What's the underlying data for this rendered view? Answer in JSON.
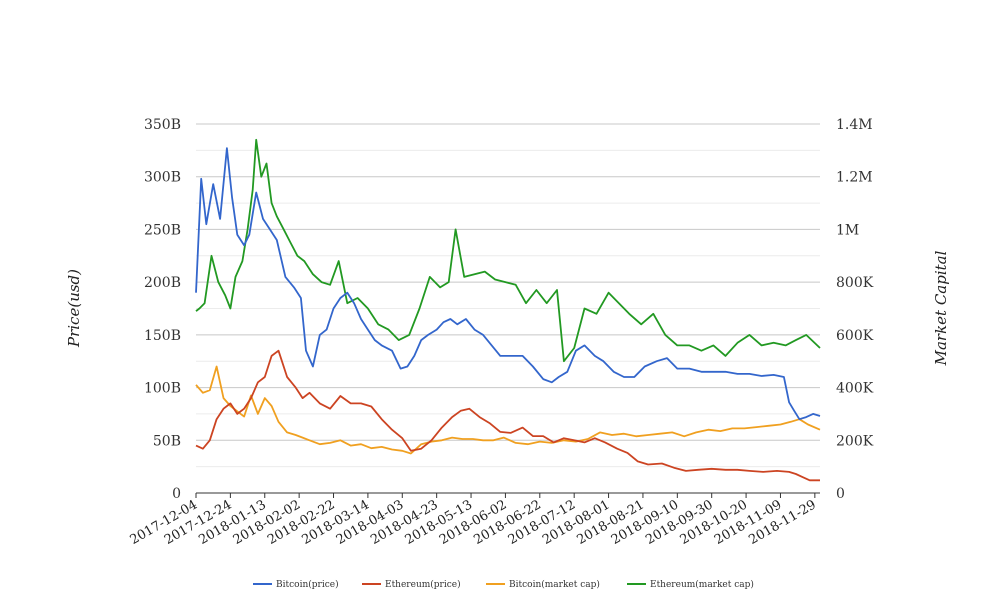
{
  "chart_data": {
    "type": "line",
    "title": "",
    "xlabel": "",
    "ylabel_left": "Price(usd)",
    "ylabel_right": "Market Capital",
    "x_ticks": [
      "2017-12-04",
      "2017-12-24",
      "2018-01-13",
      "2018-02-02",
      "2018-02-22",
      "2018-03-14",
      "2018-04-03",
      "2018-04-23",
      "2018-05-13",
      "2018-06-02",
      "2018-06-22",
      "2018-07-12",
      "2018-08-01",
      "2018-08-21",
      "2018-09-10",
      "2018-09-30",
      "2018-10-20",
      "2018-11-09",
      "2018-11-29"
    ],
    "x_range": [
      "2017-12-04",
      "2018-12-02"
    ],
    "y_left": {
      "range": [
        0,
        350
      ],
      "ticks": [
        0,
        50,
        100,
        150,
        200,
        250,
        300,
        350
      ],
      "tick_labels": [
        "0",
        "50B",
        "100B",
        "150B",
        "200B",
        "250B",
        "300B",
        "350B"
      ]
    },
    "y_right": {
      "range": [
        0,
        1400
      ],
      "ticks": [
        0,
        200,
        400,
        600,
        800,
        1000,
        1200,
        1400
      ],
      "tick_labels": [
        "0",
        "200K",
        "400K",
        "600K",
        "800K",
        "1M",
        "1.2M",
        "1.4M"
      ]
    },
    "grid": true,
    "legend_position": "bottom",
    "series": [
      {
        "name": "Bitcoin(price)",
        "axis": "left",
        "color": "#3366cc",
        "x": [
          "2017-12-04",
          "2017-12-07",
          "2017-12-10",
          "2017-12-14",
          "2017-12-18",
          "2017-12-22",
          "2017-12-25",
          "2017-12-28",
          "2018-01-01",
          "2018-01-04",
          "2018-01-08",
          "2018-01-12",
          "2018-01-16",
          "2018-01-20",
          "2018-01-25",
          "2018-01-30",
          "2018-02-03",
          "2018-02-06",
          "2018-02-10",
          "2018-02-14",
          "2018-02-18",
          "2018-02-22",
          "2018-02-26",
          "2018-03-02",
          "2018-03-06",
          "2018-03-10",
          "2018-03-14",
          "2018-03-18",
          "2018-03-22",
          "2018-03-28",
          "2018-04-02",
          "2018-04-06",
          "2018-04-10",
          "2018-04-14",
          "2018-04-18",
          "2018-04-23",
          "2018-04-27",
          "2018-05-01",
          "2018-05-05",
          "2018-05-10",
          "2018-05-15",
          "2018-05-20",
          "2018-05-25",
          "2018-05-30",
          "2018-06-05",
          "2018-06-12",
          "2018-06-18",
          "2018-06-24",
          "2018-06-29",
          "2018-07-03",
          "2018-07-08",
          "2018-07-13",
          "2018-07-18",
          "2018-07-24",
          "2018-07-29",
          "2018-08-04",
          "2018-08-10",
          "2018-08-16",
          "2018-08-22",
          "2018-08-29",
          "2018-09-04",
          "2018-09-10",
          "2018-09-17",
          "2018-09-24",
          "2018-10-01",
          "2018-10-08",
          "2018-10-15",
          "2018-10-22",
          "2018-10-29",
          "2018-11-05",
          "2018-11-11",
          "2018-11-14",
          "2018-11-17",
          "2018-11-20",
          "2018-11-24",
          "2018-11-28",
          "2018-12-02"
        ],
        "values": [
          190,
          298,
          255,
          293,
          260,
          327,
          280,
          245,
          235,
          245,
          285,
          260,
          250,
          240,
          205,
          195,
          185,
          135,
          120,
          150,
          155,
          175,
          185,
          190,
          180,
          165,
          155,
          145,
          140,
          135,
          118,
          120,
          130,
          145,
          150,
          155,
          162,
          165,
          160,
          165,
          155,
          150,
          140,
          130,
          130,
          130,
          120,
          108,
          105,
          110,
          115,
          135,
          140,
          130,
          125,
          115,
          110,
          110,
          120,
          125,
          128,
          118,
          118,
          115,
          115,
          115,
          113,
          113,
          111,
          112,
          110,
          86,
          78,
          70,
          72,
          75,
          73
        ]
      },
      {
        "name": "Ethereum(price)",
        "axis": "left",
        "color": "#cc4422",
        "x": [
          "2017-12-04",
          "2017-12-08",
          "2017-12-12",
          "2017-12-16",
          "2017-12-20",
          "2017-12-24",
          "2017-12-28",
          "2018-01-01",
          "2018-01-05",
          "2018-01-09",
          "2018-01-13",
          "2018-01-17",
          "2018-01-21",
          "2018-01-26",
          "2018-01-31",
          "2018-02-04",
          "2018-02-08",
          "2018-02-14",
          "2018-02-20",
          "2018-02-26",
          "2018-03-04",
          "2018-03-10",
          "2018-03-16",
          "2018-03-22",
          "2018-03-28",
          "2018-04-03",
          "2018-04-08",
          "2018-04-14",
          "2018-04-20",
          "2018-04-26",
          "2018-05-02",
          "2018-05-07",
          "2018-05-12",
          "2018-05-18",
          "2018-05-24",
          "2018-05-30",
          "2018-06-05",
          "2018-06-12",
          "2018-06-18",
          "2018-06-24",
          "2018-06-30",
          "2018-07-06",
          "2018-07-12",
          "2018-07-18",
          "2018-07-24",
          "2018-07-30",
          "2018-08-06",
          "2018-08-12",
          "2018-08-18",
          "2018-08-24",
          "2018-09-01",
          "2018-09-08",
          "2018-09-15",
          "2018-09-22",
          "2018-09-30",
          "2018-10-08",
          "2018-10-15",
          "2018-10-22",
          "2018-10-30",
          "2018-11-07",
          "2018-11-14",
          "2018-11-18",
          "2018-11-22",
          "2018-11-26",
          "2018-12-02"
        ],
        "values": [
          45,
          42,
          50,
          70,
          80,
          85,
          75,
          80,
          90,
          105,
          110,
          130,
          135,
          110,
          100,
          90,
          95,
          85,
          80,
          92,
          85,
          85,
          82,
          70,
          60,
          52,
          40,
          42,
          50,
          62,
          72,
          78,
          80,
          72,
          66,
          58,
          57,
          62,
          54,
          54,
          48,
          52,
          50,
          48,
          52,
          48,
          42,
          38,
          30,
          27,
          28,
          24,
          21,
          22,
          23,
          22,
          22,
          21,
          20,
          21,
          20,
          18,
          15,
          12,
          12
        ]
      },
      {
        "name": "Bitcoin(market cap)",
        "axis": "right",
        "color": "#f0a020",
        "x": [
          "2017-12-04",
          "2017-12-08",
          "2017-12-12",
          "2017-12-16",
          "2017-12-20",
          "2017-12-24",
          "2017-12-28",
          "2018-01-01",
          "2018-01-05",
          "2018-01-09",
          "2018-01-13",
          "2018-01-17",
          "2018-01-21",
          "2018-01-26",
          "2018-01-31",
          "2018-02-04",
          "2018-02-08",
          "2018-02-14",
          "2018-02-20",
          "2018-02-26",
          "2018-03-04",
          "2018-03-10",
          "2018-03-16",
          "2018-03-22",
          "2018-03-28",
          "2018-04-03",
          "2018-04-08",
          "2018-04-14",
          "2018-04-20",
          "2018-04-26",
          "2018-05-02",
          "2018-05-08",
          "2018-05-14",
          "2018-05-20",
          "2018-05-26",
          "2018-06-01",
          "2018-06-08",
          "2018-06-15",
          "2018-06-22",
          "2018-06-29",
          "2018-07-06",
          "2018-07-13",
          "2018-07-20",
          "2018-07-27",
          "2018-08-03",
          "2018-08-10",
          "2018-08-17",
          "2018-08-24",
          "2018-08-31",
          "2018-09-07",
          "2018-09-14",
          "2018-09-21",
          "2018-09-28",
          "2018-10-05",
          "2018-10-12",
          "2018-10-19",
          "2018-10-26",
          "2018-11-02",
          "2018-11-09",
          "2018-11-15",
          "2018-11-20",
          "2018-11-25",
          "2018-12-02"
        ],
        "values": [
          410,
          380,
          390,
          480,
          360,
          330,
          310,
          290,
          370,
          300,
          360,
          330,
          270,
          230,
          220,
          210,
          200,
          185,
          190,
          200,
          180,
          185,
          170,
          175,
          165,
          160,
          150,
          185,
          195,
          200,
          210,
          205,
          205,
          200,
          200,
          210,
          190,
          185,
          195,
          190,
          200,
          195,
          205,
          230,
          220,
          225,
          215,
          220,
          225,
          230,
          215,
          230,
          240,
          235,
          245,
          245,
          250,
          255,
          260,
          270,
          280,
          260,
          240
        ]
      },
      {
        "name": "Ethereum(market cap)",
        "axis": "right",
        "color": "#229922",
        "x": [
          "2017-12-04",
          "2017-12-06",
          "2017-12-09",
          "2017-12-13",
          "2017-12-17",
          "2017-12-21",
          "2017-12-24",
          "2017-12-27",
          "2017-12-31",
          "2018-01-03",
          "2018-01-06",
          "2018-01-08",
          "2018-01-11",
          "2018-01-14",
          "2018-01-17",
          "2018-01-20",
          "2018-01-24",
          "2018-01-28",
          "2018-02-01",
          "2018-02-05",
          "2018-02-10",
          "2018-02-15",
          "2018-02-20",
          "2018-02-25",
          "2018-03-02",
          "2018-03-08",
          "2018-03-14",
          "2018-03-20",
          "2018-03-26",
          "2018-04-01",
          "2018-04-07",
          "2018-04-13",
          "2018-04-19",
          "2018-04-25",
          "2018-04-30",
          "2018-05-04",
          "2018-05-09",
          "2018-05-15",
          "2018-05-21",
          "2018-05-27",
          "2018-06-02",
          "2018-06-08",
          "2018-06-14",
          "2018-06-20",
          "2018-06-26",
          "2018-07-02",
          "2018-07-06",
          "2018-07-12",
          "2018-07-18",
          "2018-07-25",
          "2018-08-01",
          "2018-08-07",
          "2018-08-13",
          "2018-08-20",
          "2018-08-27",
          "2018-09-03",
          "2018-09-10",
          "2018-09-17",
          "2018-09-24",
          "2018-10-01",
          "2018-10-08",
          "2018-10-15",
          "2018-10-22",
          "2018-10-29",
          "2018-11-05",
          "2018-11-12",
          "2018-11-18",
          "2018-11-24",
          "2018-12-02"
        ],
        "values": [
          690,
          700,
          720,
          900,
          800,
          750,
          700,
          820,
          880,
          1000,
          1150,
          1340,
          1200,
          1250,
          1100,
          1050,
          1000,
          950,
          900,
          880,
          830,
          800,
          790,
          880,
          720,
          740,
          700,
          640,
          620,
          580,
          600,
          700,
          820,
          780,
          800,
          1000,
          820,
          830,
          840,
          810,
          800,
          790,
          720,
          770,
          720,
          770,
          500,
          550,
          700,
          680,
          760,
          720,
          680,
          640,
          680,
          600,
          560,
          560,
          540,
          560,
          520,
          570,
          600,
          560,
          570,
          560,
          580,
          600,
          550
        ]
      }
    ]
  }
}
